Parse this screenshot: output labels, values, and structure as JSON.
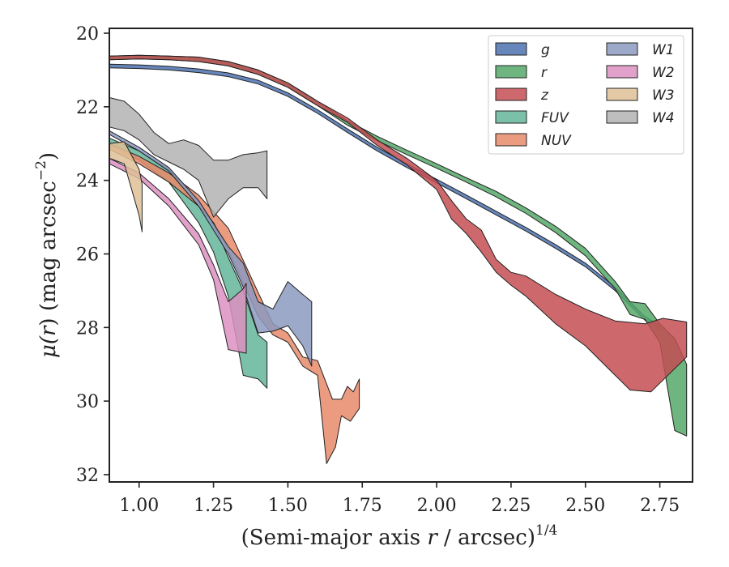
{
  "chart_data": {
    "type": "area",
    "xlabel": "(Semi-major axis r / arcsec)^1/4",
    "xlabel_parts": {
      "pre": "(Semi-major axis ",
      "var": "r",
      "post": " / arcsec)",
      "exp": "1/4"
    },
    "ylabel": "μ(r) (mag arcsec^−2)",
    "ylabel_parts": {
      "mu": "μ(",
      "var": "r",
      "mid": ") (mag arcsec",
      "exp": "−2",
      "post": ")"
    },
    "xlim": [
      0.9,
      2.86
    ],
    "ylim": [
      32.2,
      19.9
    ],
    "x_ticks": [
      1.0,
      1.25,
      1.5,
      1.75,
      2.0,
      2.25,
      2.5,
      2.75
    ],
    "x_tick_labels": [
      "1.00",
      "1.25",
      "1.50",
      "1.75",
      "2.00",
      "2.25",
      "2.50",
      "2.75"
    ],
    "y_ticks": [
      20,
      22,
      24,
      26,
      28,
      30,
      32
    ],
    "y_tick_labels": [
      "20",
      "22",
      "24",
      "26",
      "28",
      "30",
      "32"
    ],
    "legend_position": "top-right",
    "series": [
      {
        "name": "g",
        "color": "#4c72b0",
        "upper": [
          [
            0.9,
            20.84
          ],
          [
            1.0,
            20.86
          ],
          [
            1.1,
            20.9
          ],
          [
            1.2,
            20.97
          ],
          [
            1.3,
            21.08
          ],
          [
            1.4,
            21.28
          ],
          [
            1.5,
            21.62
          ],
          [
            1.6,
            22.08
          ],
          [
            1.7,
            22.6
          ],
          [
            1.8,
            23.1
          ],
          [
            1.9,
            23.55
          ],
          [
            2.0,
            23.97
          ],
          [
            2.1,
            24.4
          ],
          [
            2.2,
            24.84
          ],
          [
            2.3,
            25.28
          ],
          [
            2.4,
            25.75
          ],
          [
            2.5,
            26.25
          ],
          [
            2.6,
            26.9
          ],
          [
            2.7,
            27.7
          ],
          [
            2.75,
            27.95
          ]
        ],
        "lower": [
          [
            0.9,
            20.94
          ],
          [
            1.0,
            20.96
          ],
          [
            1.1,
            21.0
          ],
          [
            1.2,
            21.07
          ],
          [
            1.3,
            21.18
          ],
          [
            1.4,
            21.38
          ],
          [
            1.5,
            21.72
          ],
          [
            1.6,
            22.18
          ],
          [
            1.7,
            22.7
          ],
          [
            1.8,
            23.2
          ],
          [
            1.9,
            23.65
          ],
          [
            2.0,
            24.07
          ],
          [
            2.1,
            24.5
          ],
          [
            2.2,
            24.94
          ],
          [
            2.3,
            25.38
          ],
          [
            2.4,
            25.85
          ],
          [
            2.5,
            26.35
          ],
          [
            2.6,
            27.0
          ],
          [
            2.7,
            27.8
          ],
          [
            2.75,
            28.05
          ]
        ]
      },
      {
        "name": "r",
        "color": "#55a868",
        "upper": [
          [
            0.9,
            20.62
          ],
          [
            1.0,
            20.6
          ],
          [
            1.1,
            20.62
          ],
          [
            1.2,
            20.65
          ],
          [
            1.3,
            20.77
          ],
          [
            1.4,
            21.0
          ],
          [
            1.5,
            21.35
          ],
          [
            1.6,
            21.85
          ],
          [
            1.7,
            22.38
          ],
          [
            1.8,
            22.8
          ],
          [
            1.9,
            23.18
          ],
          [
            2.0,
            23.55
          ],
          [
            2.1,
            23.93
          ],
          [
            2.2,
            24.3
          ],
          [
            2.3,
            24.75
          ],
          [
            2.4,
            25.25
          ],
          [
            2.5,
            25.85
          ],
          [
            2.6,
            26.75
          ],
          [
            2.65,
            27.3
          ],
          [
            2.7,
            27.35
          ],
          [
            2.75,
            27.9
          ],
          [
            2.8,
            28.3
          ],
          [
            2.84,
            29.0
          ]
        ],
        "lower": [
          [
            0.9,
            20.72
          ],
          [
            1.0,
            20.7
          ],
          [
            1.1,
            20.72
          ],
          [
            1.2,
            20.77
          ],
          [
            1.3,
            20.89
          ],
          [
            1.4,
            21.12
          ],
          [
            1.5,
            21.47
          ],
          [
            1.6,
            21.97
          ],
          [
            1.7,
            22.5
          ],
          [
            1.8,
            22.92
          ],
          [
            1.9,
            23.3
          ],
          [
            2.0,
            23.67
          ],
          [
            2.1,
            24.05
          ],
          [
            2.2,
            24.45
          ],
          [
            2.3,
            24.9
          ],
          [
            2.4,
            25.42
          ],
          [
            2.5,
            26.05
          ],
          [
            2.6,
            26.95
          ],
          [
            2.65,
            27.65
          ],
          [
            2.7,
            27.78
          ],
          [
            2.75,
            28.4
          ],
          [
            2.8,
            30.8
          ],
          [
            2.84,
            30.95
          ]
        ]
      },
      {
        "name": "z",
        "color": "#c44e52",
        "upper": [
          [
            0.9,
            20.62
          ],
          [
            1.0,
            20.6
          ],
          [
            1.1,
            20.62
          ],
          [
            1.2,
            20.65
          ],
          [
            1.3,
            20.77
          ],
          [
            1.4,
            21.0
          ],
          [
            1.5,
            21.35
          ],
          [
            1.6,
            21.85
          ],
          [
            1.7,
            22.3
          ],
          [
            1.8,
            22.9
          ],
          [
            1.9,
            23.4
          ],
          [
            2.0,
            24.0
          ],
          [
            2.05,
            24.55
          ],
          [
            2.1,
            25.05
          ],
          [
            2.15,
            25.35
          ],
          [
            2.2,
            26.15
          ],
          [
            2.25,
            26.5
          ],
          [
            2.3,
            26.6
          ],
          [
            2.4,
            27.1
          ],
          [
            2.5,
            27.5
          ],
          [
            2.6,
            27.82
          ],
          [
            2.7,
            27.9
          ],
          [
            2.76,
            27.75
          ],
          [
            2.84,
            27.85
          ]
        ],
        "lower": [
          [
            0.9,
            20.72
          ],
          [
            1.0,
            20.7
          ],
          [
            1.1,
            20.72
          ],
          [
            1.2,
            20.77
          ],
          [
            1.3,
            20.89
          ],
          [
            1.4,
            21.12
          ],
          [
            1.5,
            21.47
          ],
          [
            1.6,
            21.97
          ],
          [
            1.7,
            22.42
          ],
          [
            1.8,
            23.05
          ],
          [
            1.9,
            23.58
          ],
          [
            2.0,
            24.25
          ],
          [
            2.05,
            25.05
          ],
          [
            2.1,
            25.45
          ],
          [
            2.15,
            25.95
          ],
          [
            2.2,
            26.5
          ],
          [
            2.25,
            26.85
          ],
          [
            2.3,
            27.15
          ],
          [
            2.4,
            27.9
          ],
          [
            2.5,
            28.5
          ],
          [
            2.6,
            29.3
          ],
          [
            2.65,
            29.7
          ],
          [
            2.72,
            29.75
          ],
          [
            2.84,
            28.8
          ]
        ]
      },
      {
        "name": "FUV",
        "color": "#64b59a",
        "upper": [
          [
            0.9,
            22.85
          ],
          [
            1.0,
            23.2
          ],
          [
            1.1,
            23.7
          ],
          [
            1.2,
            24.55
          ],
          [
            1.25,
            25.15
          ],
          [
            1.3,
            26.1
          ],
          [
            1.35,
            27.0
          ],
          [
            1.4,
            28.2
          ],
          [
            1.43,
            28.4
          ]
        ],
        "lower": [
          [
            0.9,
            23.05
          ],
          [
            1.0,
            23.45
          ],
          [
            1.1,
            24.05
          ],
          [
            1.2,
            25.15
          ],
          [
            1.25,
            25.95
          ],
          [
            1.3,
            27.15
          ],
          [
            1.35,
            29.3
          ],
          [
            1.4,
            29.4
          ],
          [
            1.43,
            29.65
          ]
        ]
      },
      {
        "name": "NUV",
        "color": "#e8896a",
        "upper": [
          [
            0.9,
            23.0
          ],
          [
            1.0,
            23.35
          ],
          [
            1.1,
            23.8
          ],
          [
            1.2,
            24.4
          ],
          [
            1.3,
            25.3
          ],
          [
            1.4,
            27.05
          ],
          [
            1.45,
            27.9
          ],
          [
            1.5,
            28.15
          ],
          [
            1.55,
            28.8
          ],
          [
            1.6,
            28.9
          ],
          [
            1.65,
            29.95
          ],
          [
            1.68,
            29.95
          ],
          [
            1.7,
            29.6
          ],
          [
            1.72,
            29.75
          ],
          [
            1.74,
            29.4
          ]
        ],
        "lower": [
          [
            0.9,
            23.15
          ],
          [
            1.0,
            23.55
          ],
          [
            1.1,
            24.05
          ],
          [
            1.2,
            24.7
          ],
          [
            1.25,
            25.15
          ],
          [
            1.3,
            25.9
          ],
          [
            1.4,
            27.7
          ],
          [
            1.45,
            28.2
          ],
          [
            1.5,
            28.4
          ],
          [
            1.55,
            29.05
          ],
          [
            1.6,
            29.3
          ],
          [
            1.63,
            31.7
          ],
          [
            1.66,
            31.25
          ],
          [
            1.68,
            30.4
          ],
          [
            1.71,
            30.55
          ],
          [
            1.74,
            30.2
          ]
        ]
      },
      {
        "name": "W1",
        "color": "#8c9ac0",
        "upper": [
          [
            0.9,
            22.65
          ],
          [
            1.0,
            23.1
          ],
          [
            1.1,
            23.65
          ],
          [
            1.2,
            24.55
          ],
          [
            1.3,
            25.8
          ],
          [
            1.35,
            26.25
          ],
          [
            1.4,
            27.3
          ],
          [
            1.45,
            27.5
          ],
          [
            1.5,
            26.75
          ],
          [
            1.55,
            27.1
          ],
          [
            1.58,
            27.3
          ]
        ],
        "lower": [
          [
            0.9,
            22.75
          ],
          [
            1.0,
            23.2
          ],
          [
            1.1,
            23.75
          ],
          [
            1.2,
            24.7
          ],
          [
            1.3,
            26.0
          ],
          [
            1.35,
            26.9
          ],
          [
            1.4,
            28.15
          ],
          [
            1.45,
            28.1
          ],
          [
            1.5,
            27.95
          ],
          [
            1.55,
            28.5
          ],
          [
            1.58,
            29.05
          ]
        ]
      },
      {
        "name": "W2",
        "color": "#dd91c1",
        "upper": [
          [
            0.9,
            23.4
          ],
          [
            1.0,
            23.8
          ],
          [
            1.1,
            24.5
          ],
          [
            1.2,
            25.45
          ],
          [
            1.25,
            26.3
          ],
          [
            1.3,
            27.3
          ],
          [
            1.35,
            26.95
          ],
          [
            1.36,
            26.8
          ]
        ],
        "lower": [
          [
            0.9,
            23.55
          ],
          [
            1.0,
            23.95
          ],
          [
            1.1,
            24.7
          ],
          [
            1.2,
            25.75
          ],
          [
            1.25,
            26.7
          ],
          [
            1.3,
            28.6
          ],
          [
            1.36,
            28.7
          ]
        ]
      },
      {
        "name": "W3",
        "color": "#dfbf98",
        "upper": [
          [
            0.9,
            23.0
          ],
          [
            0.95,
            22.95
          ],
          [
            1.0,
            23.7
          ],
          [
            1.01,
            24.1
          ]
        ],
        "lower": [
          [
            0.9,
            23.4
          ],
          [
            0.95,
            23.55
          ],
          [
            1.0,
            24.95
          ],
          [
            1.01,
            25.4
          ]
        ]
      },
      {
        "name": "W4",
        "color": "#b3b3b3",
        "upper": [
          [
            0.9,
            21.75
          ],
          [
            0.95,
            21.85
          ],
          [
            1.0,
            22.2
          ],
          [
            1.05,
            22.7
          ],
          [
            1.1,
            23.0
          ],
          [
            1.15,
            22.9
          ],
          [
            1.2,
            23.05
          ],
          [
            1.25,
            23.45
          ],
          [
            1.3,
            23.45
          ],
          [
            1.35,
            23.3
          ],
          [
            1.4,
            23.25
          ],
          [
            1.43,
            23.2
          ]
        ],
        "lower": [
          [
            0.9,
            22.55
          ],
          [
            0.95,
            22.65
          ],
          [
            1.0,
            22.9
          ],
          [
            1.05,
            23.3
          ],
          [
            1.1,
            23.5
          ],
          [
            1.15,
            23.7
          ],
          [
            1.2,
            24.0
          ],
          [
            1.25,
            25.0
          ],
          [
            1.3,
            24.5
          ],
          [
            1.35,
            24.2
          ],
          [
            1.4,
            24.2
          ],
          [
            1.43,
            24.5
          ]
        ]
      }
    ]
  }
}
